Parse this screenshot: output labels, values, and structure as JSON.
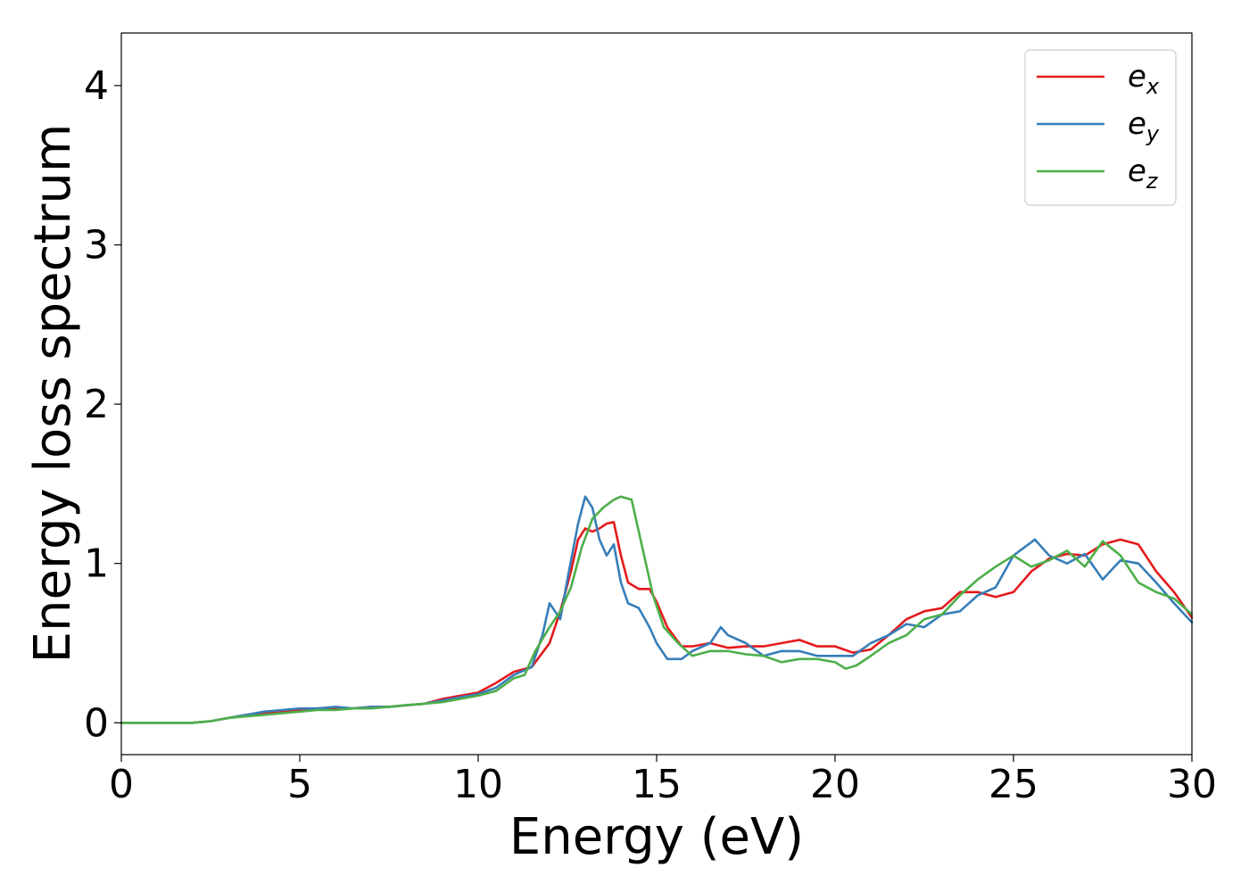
{
  "chart_data": {
    "type": "line",
    "xlabel": "Energy (eV)",
    "ylabel": "Energy loss spectrum",
    "xlim": [
      0,
      30
    ],
    "ylim": [
      -0.2,
      4.33
    ],
    "xticks": [
      "0",
      "5",
      "10",
      "15",
      "20",
      "25",
      "30"
    ],
    "yticks": [
      "0",
      "1",
      "2",
      "3",
      "4"
    ],
    "grid": false,
    "legend_position": "top-right",
    "series": [
      {
        "name": "e_x",
        "label_base": "e",
        "label_sub": "x",
        "color": "#e41a1c",
        "x": [
          0,
          2,
          2.5,
          3,
          3.5,
          4,
          4.5,
          5,
          5.5,
          6,
          6.5,
          7,
          7.5,
          8,
          8.5,
          9,
          9.5,
          10,
          10.5,
          11,
          11.5,
          12,
          12.3,
          12.6,
          12.8,
          13,
          13.2,
          13.4,
          13.6,
          13.8,
          14,
          14.2,
          14.5,
          14.8,
          15,
          15.3,
          15.7,
          16,
          16.5,
          17,
          17.5,
          18,
          18.5,
          19,
          19.5,
          20,
          20.5,
          21,
          21.5,
          22,
          22.5,
          23,
          23.5,
          24,
          24.5,
          25,
          25.5,
          26,
          26.5,
          27,
          27.5,
          28,
          28.5,
          29,
          29.5,
          30
        ],
        "y": [
          0,
          0,
          0.01,
          0.03,
          0.05,
          0.06,
          0.07,
          0.08,
          0.09,
          0.09,
          0.09,
          0.1,
          0.1,
          0.11,
          0.12,
          0.15,
          0.17,
          0.19,
          0.25,
          0.32,
          0.35,
          0.5,
          0.7,
          0.95,
          1.15,
          1.22,
          1.2,
          1.22,
          1.25,
          1.26,
          1.05,
          0.88,
          0.84,
          0.84,
          0.76,
          0.6,
          0.48,
          0.48,
          0.5,
          0.47,
          0.48,
          0.48,
          0.5,
          0.52,
          0.48,
          0.48,
          0.44,
          0.46,
          0.55,
          0.65,
          0.7,
          0.72,
          0.82,
          0.82,
          0.79,
          0.82,
          0.95,
          1.03,
          1.06,
          1.05,
          1.12,
          1.15,
          1.12,
          0.95,
          0.82,
          0.66
        ]
      },
      {
        "name": "e_y",
        "label_base": "e",
        "label_sub": "y",
        "color": "#377eb8",
        "x": [
          0,
          2,
          2.5,
          3,
          3.5,
          4,
          4.5,
          5,
          5.5,
          6,
          6.5,
          7,
          7.5,
          8,
          8.5,
          9,
          9.5,
          10,
          10.5,
          11,
          11.5,
          11.8,
          12,
          12.3,
          12.5,
          12.8,
          13,
          13.2,
          13.4,
          13.6,
          13.8,
          14,
          14.2,
          14.5,
          14.8,
          15,
          15.3,
          15.7,
          16,
          16.5,
          16.8,
          17,
          17.5,
          18,
          18.5,
          19,
          19.5,
          20,
          20.5,
          21,
          21.5,
          22,
          22.5,
          23,
          23.5,
          24,
          24.5,
          25,
          25.3,
          25.6,
          26,
          26.5,
          27,
          27.5,
          28,
          28.5,
          29,
          29.5,
          30
        ],
        "y": [
          0,
          0,
          0.01,
          0.03,
          0.05,
          0.07,
          0.08,
          0.09,
          0.09,
          0.1,
          0.09,
          0.1,
          0.1,
          0.11,
          0.12,
          0.14,
          0.16,
          0.18,
          0.22,
          0.3,
          0.35,
          0.55,
          0.75,
          0.65,
          0.9,
          1.25,
          1.42,
          1.35,
          1.15,
          1.05,
          1.12,
          0.88,
          0.75,
          0.72,
          0.6,
          0.5,
          0.4,
          0.4,
          0.45,
          0.5,
          0.6,
          0.55,
          0.5,
          0.42,
          0.45,
          0.45,
          0.42,
          0.42,
          0.42,
          0.5,
          0.55,
          0.62,
          0.6,
          0.68,
          0.7,
          0.8,
          0.85,
          1.05,
          1.1,
          1.15,
          1.05,
          1.0,
          1.06,
          0.9,
          1.02,
          1.0,
          0.88,
          0.75,
          0.63
        ]
      },
      {
        "name": "e_z",
        "label_base": "e",
        "label_sub": "z",
        "color": "#4daf4a",
        "x": [
          0,
          2,
          2.5,
          3,
          3.5,
          4,
          4.5,
          5,
          5.5,
          6,
          6.5,
          7,
          7.5,
          8,
          8.5,
          9,
          9.5,
          10,
          10.5,
          11,
          11.3,
          11.6,
          12,
          12.3,
          12.6,
          12.9,
          13.2,
          13.5,
          13.8,
          14,
          14.3,
          14.6,
          14.9,
          15.2,
          15.6,
          16,
          16.5,
          17,
          17.5,
          18,
          18.5,
          19,
          19.5,
          20,
          20.3,
          20.6,
          21,
          21.5,
          22,
          22.5,
          23,
          23.5,
          24,
          24.5,
          25,
          25.5,
          26,
          26.5,
          27,
          27.5,
          28,
          28.5,
          29,
          29.5,
          30
        ],
        "y": [
          0,
          0,
          0.01,
          0.03,
          0.04,
          0.05,
          0.06,
          0.07,
          0.08,
          0.08,
          0.09,
          0.09,
          0.1,
          0.11,
          0.12,
          0.13,
          0.15,
          0.17,
          0.2,
          0.28,
          0.3,
          0.45,
          0.6,
          0.7,
          0.85,
          1.1,
          1.28,
          1.35,
          1.4,
          1.42,
          1.4,
          1.1,
          0.8,
          0.6,
          0.5,
          0.42,
          0.45,
          0.45,
          0.43,
          0.42,
          0.38,
          0.4,
          0.4,
          0.38,
          0.34,
          0.36,
          0.42,
          0.5,
          0.55,
          0.65,
          0.68,
          0.8,
          0.9,
          0.98,
          1.05,
          0.98,
          1.02,
          1.08,
          0.98,
          1.14,
          1.05,
          0.88,
          0.82,
          0.78,
          0.68
        ]
      }
    ]
  }
}
